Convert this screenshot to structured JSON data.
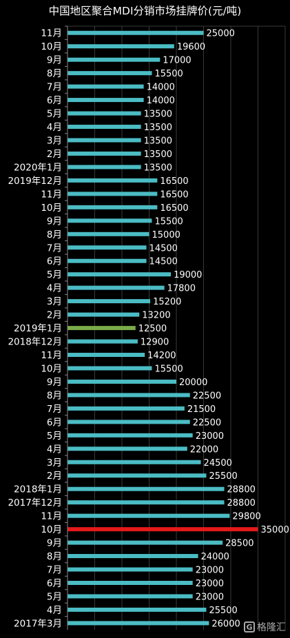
{
  "chart_data": {
    "type": "bar",
    "orientation": "horizontal",
    "title": "中国地区聚合MDI分销市场挂牌价(元/吨)",
    "xlim": [
      0,
      40000
    ],
    "grid": true,
    "categories": [
      "11月",
      "10月",
      "9月",
      "8月",
      "7月",
      "6月",
      "5月",
      "4月",
      "3月",
      "2月",
      "2020年1月",
      "2019年12月",
      "11月",
      "10月",
      "9月",
      "8月",
      "7月",
      "6月",
      "5月",
      "4月",
      "3月",
      "2月",
      "2019年1月",
      "2018年12月",
      "11月",
      "10月",
      "9月",
      "8月",
      "7月",
      "6月",
      "5月",
      "4月",
      "3月",
      "2月",
      "2018年1月",
      "2017年12月",
      "11月",
      "10月",
      "9月",
      "8月",
      "7月",
      "6月",
      "5月",
      "4月",
      "2017年3月"
    ],
    "values": [
      25000,
      19600,
      17000,
      15500,
      14000,
      14000,
      13500,
      13500,
      13500,
      13500,
      13500,
      16500,
      16500,
      16500,
      15500,
      15000,
      14500,
      14500,
      19000,
      17800,
      15200,
      13200,
      12500,
      12900,
      14200,
      15500,
      20000,
      22500,
      21500,
      22500,
      23000,
      22000,
      24500,
      25500,
      28800,
      28800,
      29800,
      35000,
      28500,
      24000,
      23000,
      23000,
      23000,
      25500,
      26000
    ],
    "value_labels": [
      "25000",
      "19600",
      "17000",
      "15500",
      "14000",
      "14000",
      "13500",
      "13500",
      "13500",
      "13500",
      "13500",
      "16500",
      "16500",
      "16500",
      "15500",
      "15000",
      "14500",
      "14500",
      "19000",
      "17800",
      "15200",
      "13200",
      "12500",
      "12900",
      "14200",
      "15500",
      "20000",
      "22500",
      "21500",
      "22500",
      "23000",
      "22000",
      "24500",
      "25500",
      "28800",
      "28800",
      "29800",
      "35000",
      "28500",
      "24000",
      "23000",
      "23000",
      "23000",
      "25500",
      "26000"
    ],
    "highlight": {
      "22": "#7aab4a",
      "37": "#e41a1a"
    }
  },
  "colors": {
    "bar": "#4bbcc4",
    "background": "#000000",
    "grid": "#3a3a3a",
    "text": "#ffffff"
  },
  "watermark": {
    "text": "格隆汇",
    "logo": "G"
  }
}
